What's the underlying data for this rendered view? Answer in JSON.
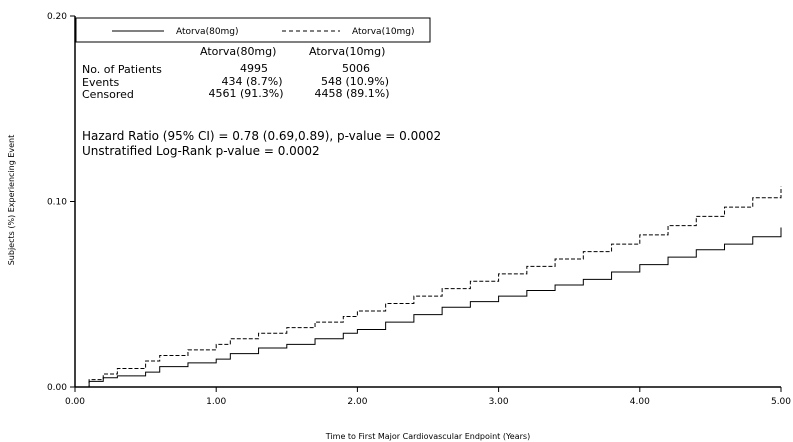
{
  "chart_data": {
    "type": "line",
    "title": "",
    "xlabel": "Time to First Major Cardiovascular Endpoint (Years)",
    "ylabel": "Subjects (%) Experiencing Event",
    "xlim": [
      0,
      5
    ],
    "ylim": [
      0,
      0.2
    ],
    "x_ticks": [
      "0.00",
      "1.00",
      "2.00",
      "3.00",
      "4.00",
      "5.00"
    ],
    "y_ticks": [
      "0.00",
      "0.10",
      "0.20"
    ],
    "grid": false,
    "legend_position": "top",
    "series": [
      {
        "name": "Atorva(80mg)",
        "line_style": "solid",
        "color": "#000000",
        "x": [
          0,
          0.1,
          0.2,
          0.3,
          0.5,
          0.6,
          0.8,
          1.0,
          1.1,
          1.3,
          1.5,
          1.7,
          1.9,
          2.0,
          2.2,
          2.4,
          2.6,
          2.8,
          3.0,
          3.2,
          3.4,
          3.6,
          3.8,
          4.0,
          4.2,
          4.4,
          4.6,
          4.8,
          5.0
        ],
        "y": [
          0,
          0.003,
          0.005,
          0.006,
          0.008,
          0.011,
          0.013,
          0.015,
          0.018,
          0.021,
          0.023,
          0.026,
          0.029,
          0.031,
          0.035,
          0.039,
          0.043,
          0.046,
          0.049,
          0.052,
          0.055,
          0.058,
          0.062,
          0.066,
          0.07,
          0.074,
          0.077,
          0.081,
          0.086
        ]
      },
      {
        "name": "Atorva(10mg)",
        "line_style": "dashed",
        "color": "#000000",
        "x": [
          0,
          0.1,
          0.2,
          0.3,
          0.5,
          0.6,
          0.8,
          1.0,
          1.1,
          1.3,
          1.5,
          1.7,
          1.9,
          2.0,
          2.2,
          2.4,
          2.6,
          2.8,
          3.0,
          3.2,
          3.4,
          3.6,
          3.8,
          4.0,
          4.2,
          4.4,
          4.6,
          4.8,
          5.0
        ],
        "y": [
          0,
          0.004,
          0.007,
          0.01,
          0.014,
          0.017,
          0.02,
          0.023,
          0.026,
          0.029,
          0.032,
          0.035,
          0.038,
          0.041,
          0.045,
          0.049,
          0.053,
          0.057,
          0.061,
          0.065,
          0.069,
          0.073,
          0.077,
          0.082,
          0.087,
          0.092,
          0.097,
          0.102,
          0.108
        ]
      }
    ],
    "legend": [
      {
        "label": "Atorva(80mg)",
        "line_style": "solid"
      },
      {
        "label": "Atorva(10mg)",
        "line_style": "dashed"
      }
    ],
    "stats_table": {
      "headers": [
        "Atorva(80mg)",
        "Atorva(10mg)"
      ],
      "rows": [
        {
          "label": "No. of Patients",
          "values": [
            "4995",
            "5006"
          ]
        },
        {
          "label": "Events",
          "values": [
            "434 (8.7%)",
            "548 (10.9%)"
          ]
        },
        {
          "label": "Censored",
          "values": [
            "4561 (91.3%)",
            "4458 (89.1%)"
          ]
        }
      ]
    },
    "annotations": [
      "Hazard Ratio (95% CI) = 0.78 (0.69,0.89), p-value = 0.0002",
      "Unstratified Log-Rank p-value = 0.0002"
    ]
  }
}
